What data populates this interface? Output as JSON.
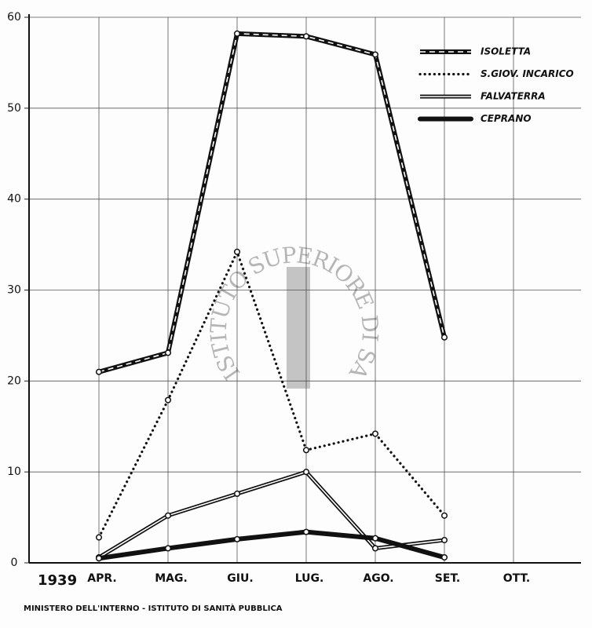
{
  "chart_data": {
    "type": "line",
    "year": "1939",
    "categories": [
      "APR.",
      "MAG.",
      "GIU.",
      "LUG.",
      "AGO.",
      "SET.",
      "OTT."
    ],
    "series": [
      {
        "name": "ISOLETTA",
        "color": "#111111",
        "style": "dash-core",
        "values": [
          21.0,
          23.1,
          58.2,
          57.9,
          55.9,
          24.8,
          null
        ]
      },
      {
        "name": "S.GIOV. INCARICO",
        "color": "#111111",
        "style": "dotted",
        "values": [
          2.8,
          17.9,
          34.2,
          12.4,
          14.2,
          5.2,
          null
        ]
      },
      {
        "name": "FALVATERRA",
        "color": "#111111",
        "style": "double",
        "values": [
          0.6,
          5.2,
          7.6,
          10.0,
          1.6,
          2.5,
          null
        ]
      },
      {
        "name": "CEPRANO",
        "color": "#111111",
        "style": "solid",
        "values": [
          0.5,
          1.6,
          2.6,
          3.4,
          2.7,
          0.6,
          null
        ]
      }
    ],
    "ylim": [
      0,
      60
    ],
    "yticks": [
      0,
      10,
      20,
      30,
      40,
      50,
      60
    ],
    "grid": true,
    "legend": "upper right",
    "watermark": "ISTITUTO SUPERIORE DI SANITÀ",
    "footer": "MINISTERO DELL'INTERNO - ISTITUTO DI SANITÀ PUBBLICA"
  }
}
